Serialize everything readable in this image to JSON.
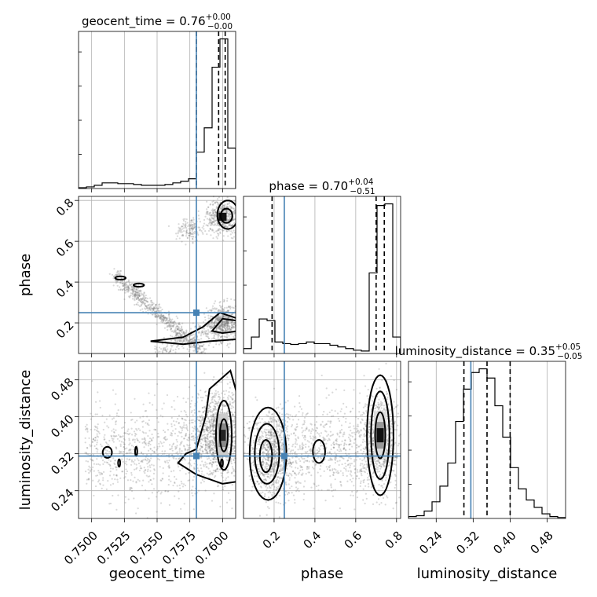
{
  "chart_data": {
    "type": "scatter",
    "kind": "corner-plot",
    "parameters": [
      "geocent_time",
      "phase",
      "luminosity_distance"
    ],
    "axis_labels": {
      "geocent_time": "geocent_time",
      "phase": "phase",
      "luminosity_distance": "luminosity_distance"
    },
    "ranges": {
      "geocent_time": [
        0.749,
        0.761
      ],
      "phase": [
        0.05,
        0.82
      ],
      "luminosity_distance": [
        0.18,
        0.52
      ]
    },
    "ticks": {
      "geocent_time": [
        "0.7500",
        "0.7525",
        "0.7550",
        "0.7575",
        "0.7600"
      ],
      "phase": [
        "0.2",
        "0.4",
        "0.6",
        "0.8"
      ],
      "luminosity_distance": [
        "0.24",
        "0.32",
        "0.40",
        "0.48"
      ]
    },
    "tick_values": {
      "geocent_time": [
        0.75,
        0.7525,
        0.755,
        0.7575,
        0.76
      ],
      "phase": [
        0.2,
        0.4,
        0.6,
        0.8
      ],
      "luminosity_distance": [
        0.24,
        0.32,
        0.4,
        0.48
      ]
    },
    "titles": {
      "geocent_time": {
        "text": "geocent_time = 0.76",
        "plus": "+0.00",
        "minus": "−0.00"
      },
      "phase": {
        "text": "phase = 0.70",
        "plus": "+0.04",
        "minus": "−0.51"
      },
      "luminosity_distance": {
        "text": "luminosity_distance = 0.35",
        "plus": "+0.05",
        "minus": "−0.05"
      }
    },
    "truth": {
      "geocent_time": 0.758,
      "phase": 0.25,
      "luminosity_distance": 0.315
    },
    "quantiles": {
      "geocent_time": [
        0.758,
        0.7597,
        0.7602
      ],
      "phase": [
        0.19,
        0.7,
        0.74
      ],
      "luminosity_distance": [
        0.3,
        0.35,
        0.4
      ]
    },
    "histograms": {
      "geocent_time": {
        "edges": [
          0.749,
          0.7496,
          0.7502,
          0.7508,
          0.7514,
          0.752,
          0.7526,
          0.7532,
          0.7538,
          0.7544,
          0.755,
          0.7556,
          0.7562,
          0.7568,
          0.7574,
          0.758,
          0.7586,
          0.7592,
          0.7598,
          0.7604,
          0.761
        ],
        "counts": [
          1,
          2,
          4,
          7,
          7,
          6,
          6,
          5,
          4,
          4,
          4,
          5,
          7,
          9,
          12,
          45,
          75,
          150,
          185,
          50
        ]
      },
      "phase": {
        "edges": [
          0.05,
          0.0885,
          0.127,
          0.1655,
          0.204,
          0.2425,
          0.281,
          0.3195,
          0.358,
          0.3965,
          0.435,
          0.4735,
          0.512,
          0.5505,
          0.589,
          0.6275,
          0.666,
          0.7045,
          0.743,
          0.7815,
          0.82
        ],
        "counts": [
          6,
          20,
          42,
          40,
          14,
          12,
          11,
          12,
          14,
          12,
          12,
          10,
          8,
          6,
          4,
          3,
          98,
          180,
          182,
          20
        ]
      },
      "luminosity_distance": {
        "edges": [
          0.18,
          0.197,
          0.214,
          0.231,
          0.248,
          0.265,
          0.282,
          0.299,
          0.316,
          0.333,
          0.35,
          0.367,
          0.384,
          0.401,
          0.418,
          0.435,
          0.452,
          0.469,
          0.486,
          0.503,
          0.52
        ],
        "counts": [
          2,
          3,
          8,
          18,
          35,
          60,
          105,
          140,
          158,
          162,
          152,
          122,
          88,
          55,
          32,
          20,
          12,
          5,
          2,
          1
        ]
      }
    },
    "grid": true
  }
}
